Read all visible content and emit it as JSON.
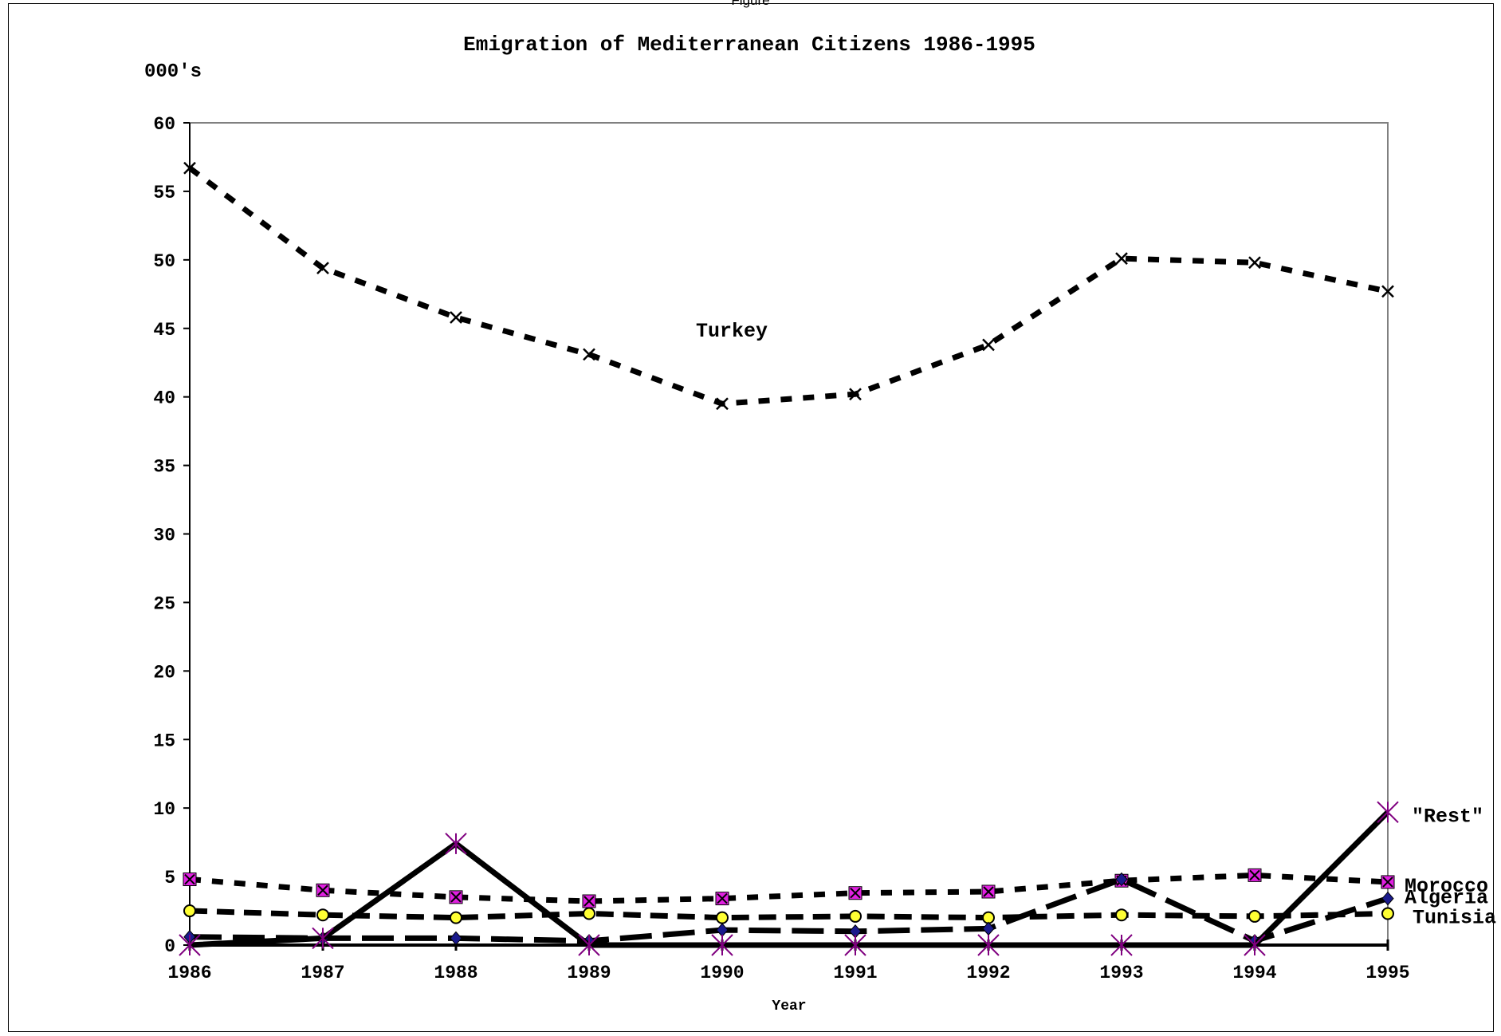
{
  "top_label": "Figure",
  "chart_data": {
    "type": "line",
    "title": "Emigration of Mediterranean Citizens 1986-1995",
    "ylabel": "000's",
    "xlabel": "Year",
    "categories": [
      "1986",
      "1987",
      "1988",
      "1989",
      "1990",
      "1991",
      "1992",
      "1993",
      "1994",
      "1995"
    ],
    "ylim": [
      0,
      60
    ],
    "yticks": [
      0,
      5,
      10,
      15,
      20,
      25,
      30,
      35,
      40,
      45,
      50,
      55,
      60
    ],
    "grid": false,
    "legend": "none",
    "annotations": {
      "turkey": "Turkey"
    },
    "series": [
      {
        "name": "Turkey",
        "values": [
          56.7,
          49.4,
          45.8,
          43.1,
          39.5,
          40.2,
          43.8,
          50.1,
          49.8,
          47.7
        ],
        "line_style": "dotted",
        "marker": "x",
        "marker_color": "#000000"
      },
      {
        "name": "Morocco",
        "values": [
          4.8,
          4.0,
          3.5,
          3.2,
          3.4,
          3.8,
          3.9,
          4.7,
          5.1,
          4.6
        ],
        "line_style": "dotted",
        "marker": "square-x",
        "marker_color": "#e020e0"
      },
      {
        "name": "Tunisia",
        "values": [
          2.5,
          2.2,
          2.0,
          2.3,
          2.0,
          2.1,
          2.0,
          2.2,
          2.1,
          2.3
        ],
        "line_style": "dash",
        "marker": "circle",
        "marker_color": "#ffff33"
      },
      {
        "name": "Algeria",
        "values": [
          0.6,
          0.5,
          0.5,
          0.3,
          1.1,
          1.0,
          1.2,
          4.8,
          0.3,
          3.4
        ],
        "line_style": "long-dash",
        "marker": "diamond",
        "marker_color": "#1a1a8c"
      },
      {
        "name": "\"Rest\"",
        "values": [
          0.0,
          0.5,
          7.4,
          0.0,
          0.0,
          0.0,
          0.0,
          0.0,
          0.0,
          9.7
        ],
        "line_style": "solid",
        "marker": "star",
        "marker_color": "#800080"
      }
    ]
  }
}
